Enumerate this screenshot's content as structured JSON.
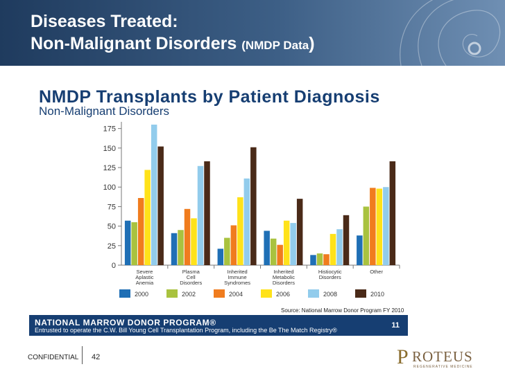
{
  "header": {
    "title_line1": "Diseases Treated:",
    "title_line2_main": "Non-Malignant Disorders",
    "title_line2_small": "(NMDP Data",
    "title_line2_close": ")"
  },
  "chart_data": {
    "type": "bar",
    "title": "NMDP Transplants by Patient Diagnosis",
    "subtitle": "Non-Malignant Disorders",
    "categories": [
      [
        "Severe",
        "Aplastic",
        "Anemia"
      ],
      [
        "Plasma",
        "Cell",
        "Disorders"
      ],
      [
        "Inherited",
        "Immune",
        "Syndromes"
      ],
      [
        "Inherited",
        "Metabolic",
        "Disorders"
      ],
      [
        "Histiocytic",
        "Disorders"
      ],
      [
        "Other"
      ]
    ],
    "series": [
      {
        "name": "2000",
        "color": "#1f6fb5",
        "values": [
          57,
          41,
          21,
          44,
          13,
          38
        ]
      },
      {
        "name": "2002",
        "color": "#a9c23f",
        "values": [
          55,
          45,
          35,
          34,
          15,
          75
        ]
      },
      {
        "name": "2004",
        "color": "#f07c1e",
        "values": [
          86,
          72,
          51,
          26,
          14,
          99
        ]
      },
      {
        "name": "2006",
        "color": "#ffe21a",
        "values": [
          122,
          60,
          87,
          57,
          40,
          98
        ]
      },
      {
        "name": "2008",
        "color": "#92ccec",
        "values": [
          180,
          127,
          111,
          54,
          46,
          100
        ]
      },
      {
        "name": "2010",
        "color": "#4a2a18",
        "values": [
          152,
          133,
          151,
          85,
          64,
          133
        ]
      }
    ],
    "yticks": [
      0,
      25,
      50,
      75,
      100,
      125,
      150,
      175
    ],
    "ylim": [
      0,
      180
    ],
    "grid": false,
    "legend_position": "bottom",
    "source": "Source: National Marrow Donor Program FY 2010"
  },
  "banner": {
    "name": "NATIONAL MARROW DONOR PROGRAM®",
    "tagline": "Entrusted to operate the C.W. Bill Young Cell Transplantation Program, including the Be The Match Registry®",
    "page": "11"
  },
  "footer": {
    "confidential": "CONFIDENTIAL",
    "slide_number": "42"
  },
  "logo": {
    "initial": "P",
    "word": "ROTEUS",
    "sub": "REGENERATIVE MEDICINE"
  }
}
